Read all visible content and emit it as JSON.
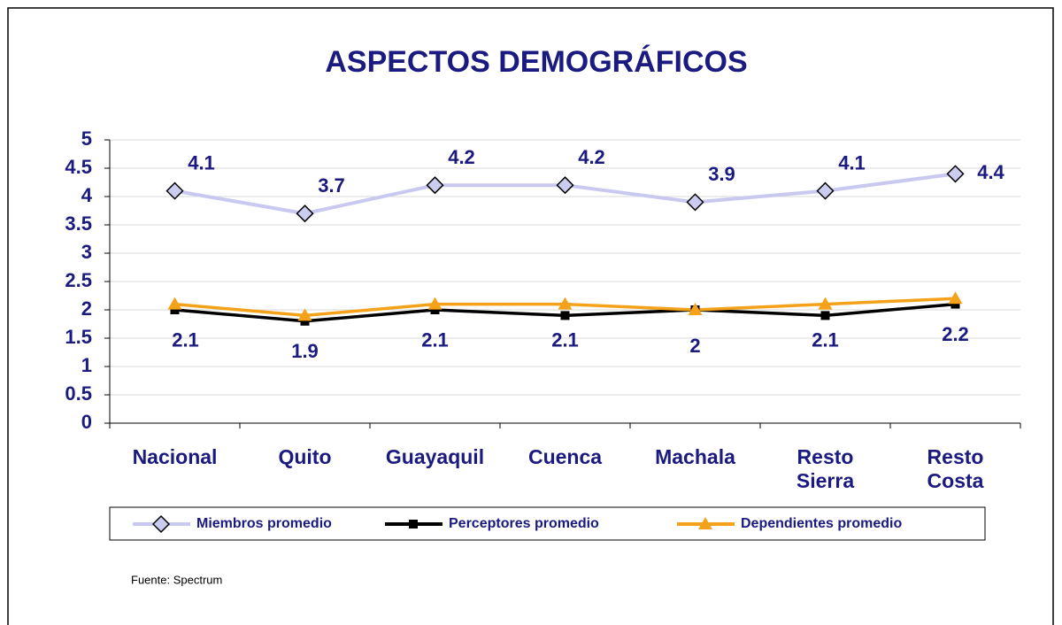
{
  "chart_data": {
    "type": "line",
    "title": "ASPECTOS DEMOGRÁFICOS",
    "categories": [
      "Nacional",
      "Quito",
      "Guayaquil",
      "Cuenca",
      "Machala",
      "Resto\nSierra",
      "Resto\nCosta"
    ],
    "series": [
      {
        "name": "Miembros promedio",
        "color": "#c8c8f0",
        "marker": "diamond",
        "values": [
          4.1,
          3.7,
          4.2,
          4.2,
          3.9,
          4.1,
          4.4
        ]
      },
      {
        "name": "Perceptores promedio",
        "color": "#000000",
        "marker": "square",
        "values": [
          2.0,
          1.8,
          2.0,
          1.9,
          2.0,
          1.9,
          2.1
        ]
      },
      {
        "name": "Dependientes promedio",
        "color": "#f5a21b",
        "marker": "triangle",
        "values": [
          2.1,
          1.9,
          2.1,
          2.1,
          2,
          2.1,
          2.2
        ]
      }
    ],
    "ylim": [
      0,
      5
    ],
    "yticks": [
      0,
      0.5,
      1,
      1.5,
      2,
      2.5,
      3,
      3.5,
      4,
      4.5,
      5
    ],
    "grid": true,
    "legend": "bottom",
    "source": "Fuente: Spectrum"
  }
}
